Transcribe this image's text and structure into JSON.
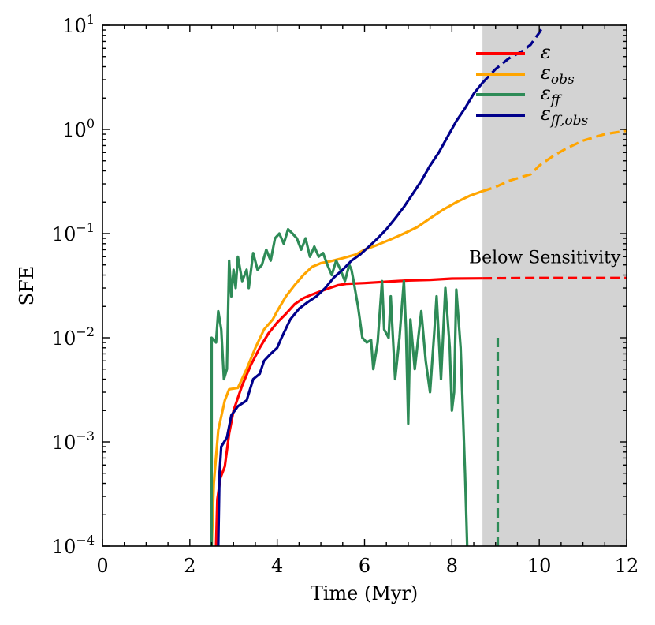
{
  "chart_data": {
    "type": "line",
    "xlabel": "Time (Myr)",
    "ylabel": "SFE",
    "xlim": [
      0,
      12
    ],
    "ylim_log10": [
      -4,
      1
    ],
    "y_scale": "log",
    "x_ticks": [
      0,
      2,
      4,
      6,
      8,
      10,
      12
    ],
    "x_tick_labels": [
      "0",
      "2",
      "4",
      "6",
      "8",
      "10",
      "12"
    ],
    "y_ticks_log10": [
      -4,
      -3,
      -2,
      -1,
      0,
      1
    ],
    "y_tick_labels": [
      {
        "base": "10",
        "exp": "−4"
      },
      {
        "base": "10",
        "exp": "−3"
      },
      {
        "base": "10",
        "exp": "−2"
      },
      {
        "base": "10",
        "exp": "−1"
      },
      {
        "base": "10",
        "exp": "0"
      },
      {
        "base": "10",
        "exp": "1"
      }
    ],
    "shaded_region": {
      "x_start": 8.7,
      "x_end": 12,
      "color": "#d3d3d3"
    },
    "annotation": {
      "text": "Below Sensitivity",
      "x": 11.9,
      "y": 0.05
    },
    "legend_position": "top-right",
    "series": [
      {
        "name": "epsilon",
        "legend_main": "ε",
        "legend_sub": "",
        "color": "#ff0000",
        "solid": [
          [
            2.6,
            0.0001
          ],
          [
            2.63,
            0.00028
          ],
          [
            2.7,
            0.00045
          ],
          [
            2.8,
            0.00058
          ],
          [
            2.9,
            0.0012
          ],
          [
            3.0,
            0.002
          ],
          [
            3.2,
            0.0035
          ],
          [
            3.4,
            0.0055
          ],
          [
            3.6,
            0.008
          ],
          [
            3.8,
            0.011
          ],
          [
            4.0,
            0.014
          ],
          [
            4.2,
            0.017
          ],
          [
            4.4,
            0.021
          ],
          [
            4.6,
            0.024
          ],
          [
            4.8,
            0.026
          ],
          [
            5.0,
            0.028
          ],
          [
            5.2,
            0.03
          ],
          [
            5.4,
            0.032
          ],
          [
            5.6,
            0.033
          ],
          [
            6.0,
            0.0335
          ],
          [
            6.5,
            0.0345
          ],
          [
            7.0,
            0.0355
          ],
          [
            7.5,
            0.036
          ],
          [
            8.0,
            0.037
          ],
          [
            8.7,
            0.0372
          ]
        ],
        "dashed": [
          [
            8.7,
            0.0372
          ],
          [
            10,
            0.0375
          ],
          [
            12,
            0.0375
          ]
        ]
      },
      {
        "name": "epsilon_obs",
        "legend_main": "ε",
        "legend_sub": "obs",
        "color": "#ffa500",
        "solid": [
          [
            2.5,
            0.0001
          ],
          [
            2.55,
            0.0004
          ],
          [
            2.65,
            0.0013
          ],
          [
            2.8,
            0.0025
          ],
          [
            2.9,
            0.0032
          ],
          [
            3.1,
            0.0033
          ],
          [
            3.3,
            0.005
          ],
          [
            3.5,
            0.008
          ],
          [
            3.7,
            0.012
          ],
          [
            3.9,
            0.015
          ],
          [
            4.0,
            0.018
          ],
          [
            4.2,
            0.025
          ],
          [
            4.4,
            0.032
          ],
          [
            4.6,
            0.04
          ],
          [
            4.8,
            0.048
          ],
          [
            5.0,
            0.052
          ],
          [
            5.2,
            0.054
          ],
          [
            5.5,
            0.058
          ],
          [
            5.8,
            0.063
          ],
          [
            6.0,
            0.07
          ],
          [
            6.3,
            0.078
          ],
          [
            6.6,
            0.088
          ],
          [
            6.9,
            0.1
          ],
          [
            7.2,
            0.115
          ],
          [
            7.5,
            0.14
          ],
          [
            7.8,
            0.17
          ],
          [
            8.1,
            0.2
          ],
          [
            8.4,
            0.23
          ],
          [
            8.7,
            0.255
          ]
        ],
        "dashed": [
          [
            8.7,
            0.255
          ],
          [
            9.0,
            0.28
          ],
          [
            9.3,
            0.32
          ],
          [
            9.6,
            0.35
          ],
          [
            9.8,
            0.37
          ],
          [
            10.0,
            0.45
          ],
          [
            10.3,
            0.55
          ],
          [
            10.6,
            0.65
          ],
          [
            11.0,
            0.78
          ],
          [
            11.5,
            0.9
          ],
          [
            12.0,
            0.97
          ]
        ]
      },
      {
        "name": "epsilon_ff",
        "legend_main": "ε",
        "legend_sub": "ff",
        "color": "#2e8b57",
        "solid": [
          [
            2.5,
            0.0001
          ],
          [
            2.5,
            0.01
          ],
          [
            2.6,
            0.009
          ],
          [
            2.65,
            0.018
          ],
          [
            2.72,
            0.012
          ],
          [
            2.78,
            0.004
          ],
          [
            2.85,
            0.005
          ],
          [
            2.9,
            0.055
          ],
          [
            2.95,
            0.025
          ],
          [
            3.0,
            0.045
          ],
          [
            3.05,
            0.03
          ],
          [
            3.1,
            0.06
          ],
          [
            3.2,
            0.035
          ],
          [
            3.3,
            0.045
          ],
          [
            3.35,
            0.03
          ],
          [
            3.45,
            0.065
          ],
          [
            3.55,
            0.045
          ],
          [
            3.65,
            0.05
          ],
          [
            3.75,
            0.07
          ],
          [
            3.85,
            0.055
          ],
          [
            3.95,
            0.09
          ],
          [
            4.05,
            0.1
          ],
          [
            4.15,
            0.08
          ],
          [
            4.25,
            0.11
          ],
          [
            4.35,
            0.1
          ],
          [
            4.45,
            0.09
          ],
          [
            4.55,
            0.07
          ],
          [
            4.65,
            0.09
          ],
          [
            4.75,
            0.06
          ],
          [
            4.85,
            0.075
          ],
          [
            4.95,
            0.06
          ],
          [
            5.05,
            0.065
          ],
          [
            5.15,
            0.05
          ],
          [
            5.25,
            0.04
          ],
          [
            5.35,
            0.055
          ],
          [
            5.45,
            0.045
          ],
          [
            5.55,
            0.035
          ],
          [
            5.65,
            0.05
          ],
          [
            5.7,
            0.045
          ],
          [
            5.75,
            0.035
          ],
          [
            5.85,
            0.02
          ],
          [
            5.95,
            0.01
          ],
          [
            6.05,
            0.009
          ],
          [
            6.15,
            0.0095
          ],
          [
            6.2,
            0.005
          ],
          [
            6.3,
            0.009
          ],
          [
            6.4,
            0.035
          ],
          [
            6.45,
            0.012
          ],
          [
            6.55,
            0.01
          ],
          [
            6.6,
            0.025
          ],
          [
            6.7,
            0.004
          ],
          [
            6.8,
            0.01
          ],
          [
            6.9,
            0.035
          ],
          [
            6.95,
            0.012
          ],
          [
            7.0,
            0.0015
          ],
          [
            7.05,
            0.015
          ],
          [
            7.15,
            0.005
          ],
          [
            7.3,
            0.018
          ],
          [
            7.4,
            0.006
          ],
          [
            7.5,
            0.003
          ],
          [
            7.6,
            0.012
          ],
          [
            7.65,
            0.025
          ],
          [
            7.75,
            0.004
          ],
          [
            7.85,
            0.03
          ],
          [
            7.95,
            0.008
          ],
          [
            8.0,
            0.002
          ],
          [
            8.05,
            0.003
          ],
          [
            8.1,
            0.029
          ],
          [
            8.2,
            0.008
          ],
          [
            8.3,
            0.0005
          ],
          [
            8.35,
            0.0001
          ]
        ],
        "dashed": [
          [
            9.05,
            0.0001
          ],
          [
            9.05,
            0.01
          ]
        ]
      },
      {
        "name": "epsilon_ff_obs",
        "legend_main": "ε",
        "legend_sub": "ff,obs",
        "color": "#00008b",
        "solid": [
          [
            2.65,
            0.0001
          ],
          [
            2.68,
            0.0005
          ],
          [
            2.72,
            0.0009
          ],
          [
            2.85,
            0.0011
          ],
          [
            2.95,
            0.0018
          ],
          [
            3.1,
            0.0022
          ],
          [
            3.3,
            0.0025
          ],
          [
            3.45,
            0.004
          ],
          [
            3.6,
            0.0045
          ],
          [
            3.7,
            0.006
          ],
          [
            3.85,
            0.007
          ],
          [
            4.0,
            0.008
          ],
          [
            4.1,
            0.01
          ],
          [
            4.3,
            0.015
          ],
          [
            4.5,
            0.019
          ],
          [
            4.7,
            0.022
          ],
          [
            4.9,
            0.025
          ],
          [
            5.1,
            0.03
          ],
          [
            5.3,
            0.038
          ],
          [
            5.5,
            0.045
          ],
          [
            5.7,
            0.055
          ],
          [
            5.9,
            0.063
          ],
          [
            6.1,
            0.075
          ],
          [
            6.3,
            0.09
          ],
          [
            6.5,
            0.11
          ],
          [
            6.7,
            0.14
          ],
          [
            6.9,
            0.18
          ],
          [
            7.1,
            0.24
          ],
          [
            7.3,
            0.32
          ],
          [
            7.5,
            0.45
          ],
          [
            7.7,
            0.6
          ],
          [
            7.9,
            0.85
          ],
          [
            8.1,
            1.2
          ],
          [
            8.3,
            1.6
          ],
          [
            8.5,
            2.2
          ],
          [
            8.7,
            2.8
          ]
        ],
        "dashed": [
          [
            8.7,
            2.8
          ],
          [
            9.0,
            3.8
          ],
          [
            9.3,
            4.8
          ],
          [
            9.6,
            5.6
          ],
          [
            9.8,
            6.5
          ],
          [
            10.0,
            8.5
          ],
          [
            10.1,
            10
          ]
        ]
      }
    ]
  }
}
